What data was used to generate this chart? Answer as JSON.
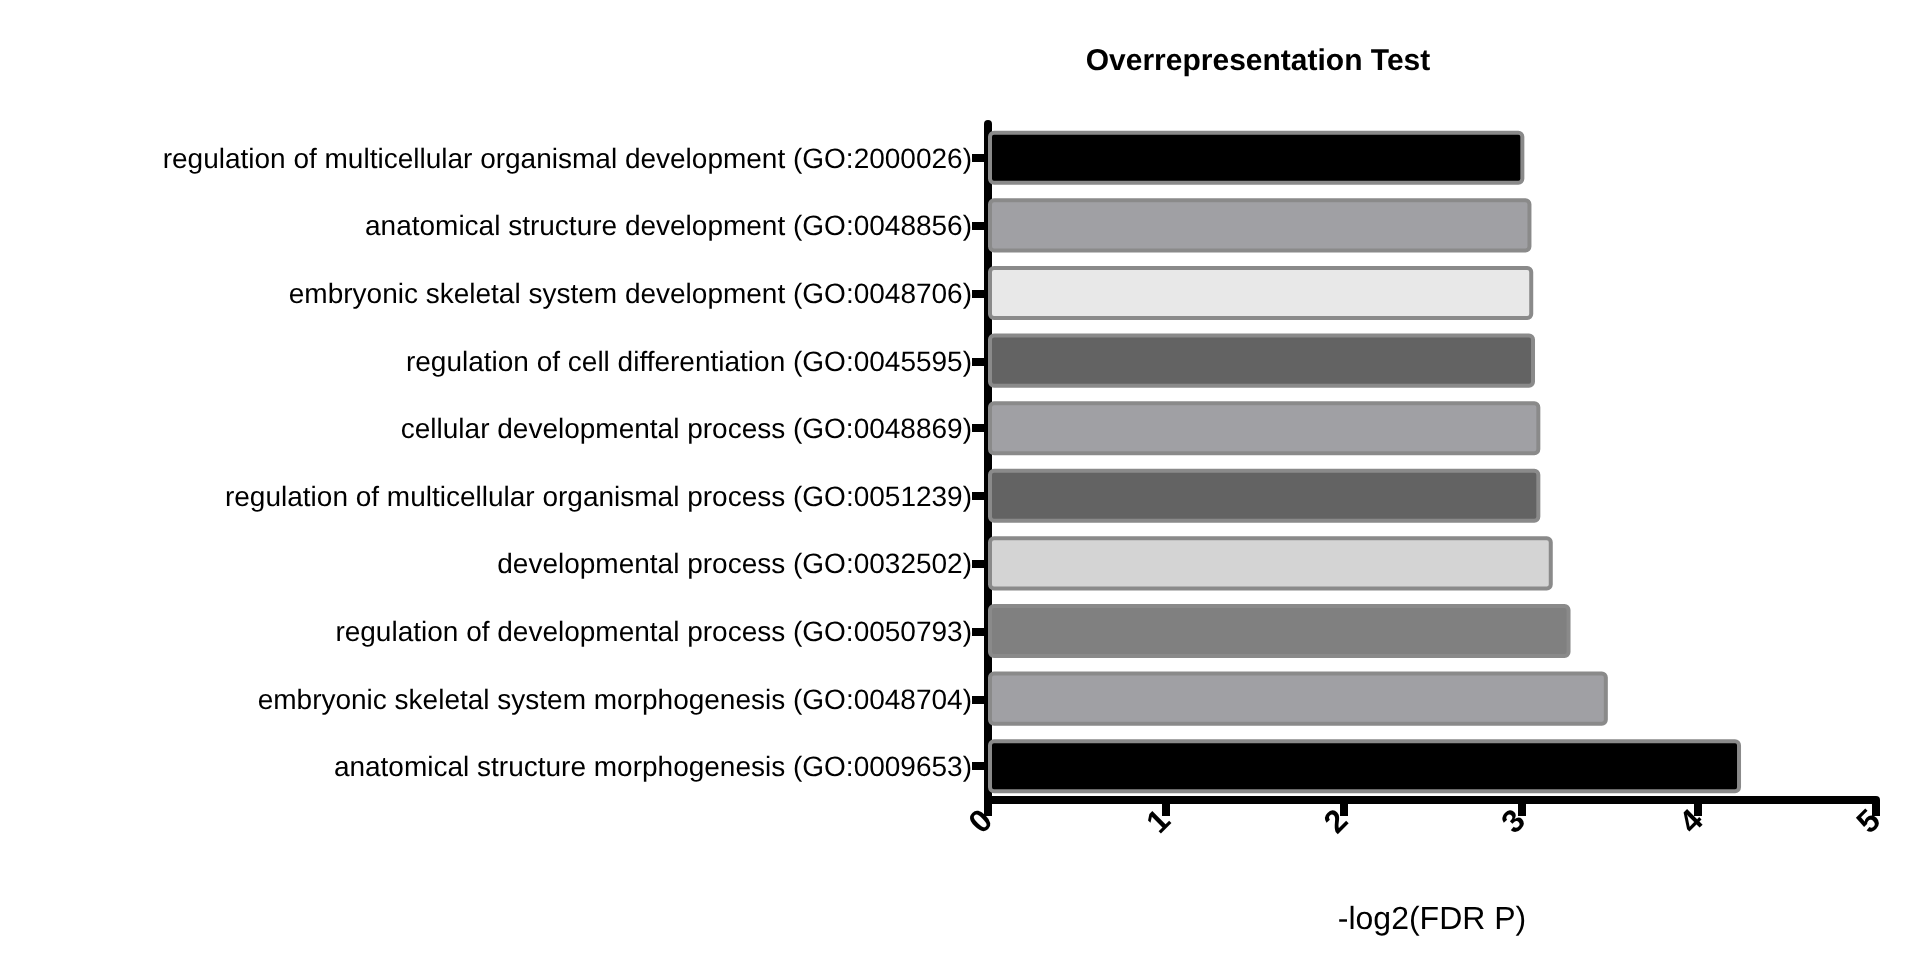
{
  "chart_data": {
    "type": "bar",
    "orientation": "horizontal",
    "title": "Overrepresentation Test",
    "xlabel": "-log2(FDR P)",
    "categories": [
      "regulation of multicellular organismal development (GO:2000026)",
      "anatomical structure development (GO:0048856)",
      "embryonic skeletal system development (GO:0048706)",
      "regulation of cell differentiation (GO:0045595)",
      "cellular developmental process (GO:0048869)",
      "regulation of multicellular organismal process (GO:0051239)",
      "developmental process (GO:0032502)",
      "regulation of developmental process (GO:0050793)",
      "embryonic skeletal system morphogenesis (GO:0048704)",
      "anatomical structure morphogenesis (GO:0009653)"
    ],
    "values": [
      3.02,
      3.06,
      3.07,
      3.08,
      3.11,
      3.11,
      3.18,
      3.28,
      3.49,
      4.24
    ],
    "colors": [
      "#000000",
      "#a0a0a4",
      "#e8e8e8",
      "#636363",
      "#a0a0a4",
      "#636363",
      "#d4d4d4",
      "#808080",
      "#a0a0a4",
      "#000000"
    ],
    "xlim": [
      0,
      5
    ],
    "xticks": [
      0,
      1,
      2,
      3,
      4,
      5
    ],
    "grid": false
  }
}
